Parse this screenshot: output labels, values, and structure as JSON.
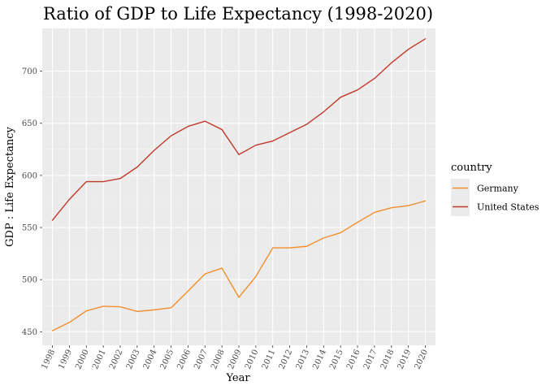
{
  "chart_data": {
    "type": "line",
    "title": "Ratio of GDP to Life Expectancy (1998-2020)",
    "xlabel": "Year",
    "ylabel": "GDP : Life Expectancy",
    "x": [
      1998,
      1999,
      2000,
      2001,
      2002,
      2003,
      2004,
      2005,
      2006,
      2007,
      2008,
      2009,
      2010,
      2011,
      2012,
      2013,
      2014,
      2015,
      2016,
      2017,
      2018,
      2019,
      2020
    ],
    "x_tick_labels": [
      "1998",
      "1999",
      "2000",
      "2001",
      "2002",
      "2003",
      "2004",
      "2005",
      "2006",
      "2007",
      "2008",
      "2009",
      "2010",
      "2011",
      "2012",
      "2013",
      "2014",
      "2015",
      "2016",
      "2017",
      "2018",
      "2019",
      "2020"
    ],
    "y_ticks": [
      450,
      500,
      550,
      600,
      650,
      700
    ],
    "y_tick_labels": [
      "450",
      "500",
      "550",
      "600",
      "650",
      "700"
    ],
    "xlim": [
      1997.4,
      2020.6
    ],
    "ylim": [
      437,
      741
    ],
    "grid": true,
    "legend": {
      "title": "country",
      "position": "right"
    },
    "series": [
      {
        "name": "Germany",
        "color": "#f28e2b",
        "values": [
          451,
          459,
          470,
          474.5,
          474,
          469.5,
          471,
          473,
          489,
          505.5,
          511,
          483,
          503,
          530.5,
          530.5,
          532,
          540,
          545,
          555,
          564.5,
          569,
          571,
          575.5
        ]
      },
      {
        "name": "United States",
        "color": "#c1392b",
        "values": [
          557,
          577,
          594,
          594,
          597,
          608,
          624,
          638,
          647,
          652,
          644,
          620,
          629,
          633,
          641,
          649,
          661,
          675,
          682,
          693,
          708,
          721,
          731
        ]
      }
    ]
  }
}
